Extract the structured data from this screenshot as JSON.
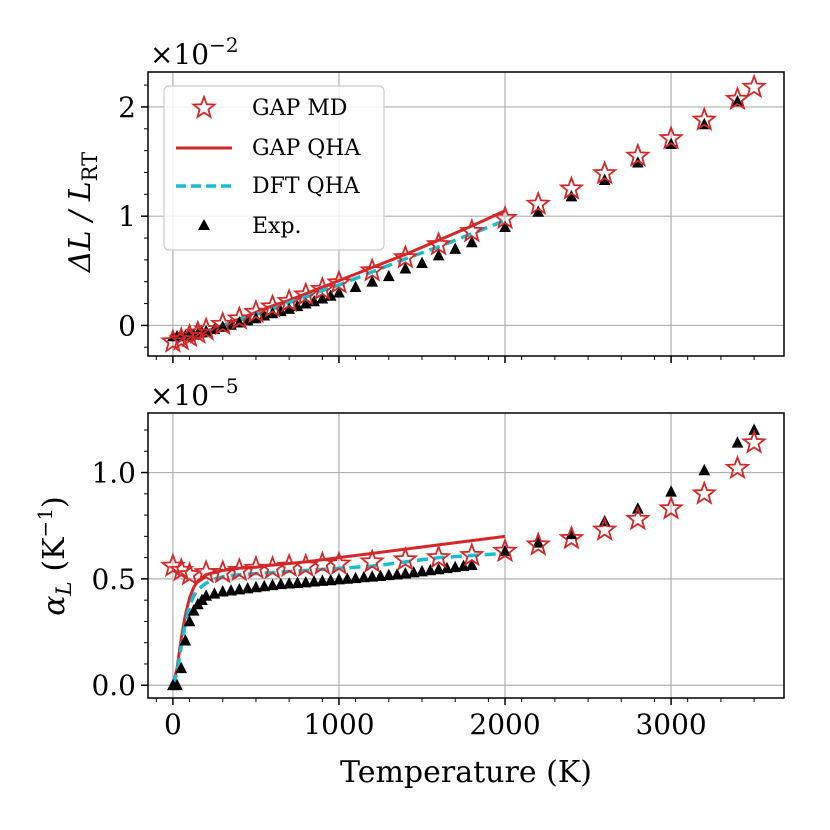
{
  "chart_data": [
    {
      "type": "scatter",
      "xlabel": "",
      "ylabel_main": "ΔL / L",
      "ylabel_sub": "RT",
      "scale_base": "×10",
      "scale_exp": "−2",
      "xlim": [
        -150,
        3680
      ],
      "ylim": [
        -0.28,
        2.32
      ],
      "xticks": [
        0,
        1000,
        2000,
        3000
      ],
      "yticks": [
        0,
        1,
        2
      ],
      "ytick_labels": [
        "0",
        "1",
        "2"
      ],
      "grid": true,
      "legend": {
        "position": "top-left",
        "entries": [
          "GAP MD",
          "GAP QHA",
          "DFT QHA",
          "Exp."
        ]
      },
      "series": [
        {
          "name": "GAP MD",
          "marker": "star",
          "color": "#d62728",
          "x": [
            0,
            50,
            100,
            150,
            200,
            300,
            400,
            500,
            600,
            700,
            800,
            900,
            1000,
            1200,
            1400,
            1600,
            1800,
            2000,
            2200,
            2400,
            2600,
            2800,
            3000,
            3200,
            3400,
            3500
          ],
          "y": [
            -0.15,
            -0.13,
            -0.1,
            -0.07,
            -0.04,
            0.01,
            0.06,
            0.12,
            0.17,
            0.22,
            0.28,
            0.33,
            0.39,
            0.5,
            0.62,
            0.74,
            0.86,
            0.98,
            1.11,
            1.25,
            1.39,
            1.55,
            1.71,
            1.88,
            2.07,
            2.18
          ]
        },
        {
          "name": "GAP QHA",
          "marker": "line",
          "color": "#d62728",
          "x": [
            0,
            50,
            100,
            150,
            200,
            300,
            400,
            500,
            600,
            700,
            800,
            900,
            1000,
            1200,
            1400,
            1600,
            1800,
            2000
          ],
          "y": [
            -0.12,
            -0.118,
            -0.105,
            -0.08,
            -0.05,
            0.0,
            0.06,
            0.12,
            0.18,
            0.23,
            0.29,
            0.35,
            0.41,
            0.53,
            0.65,
            0.78,
            0.91,
            1.05
          ]
        },
        {
          "name": "DFT QHA",
          "marker": "dashed",
          "color": "#17becf",
          "x": [
            0,
            50,
            100,
            150,
            200,
            300,
            400,
            500,
            600,
            700,
            800,
            900,
            1000,
            1200,
            1400,
            1600,
            1800,
            2000
          ],
          "y": [
            -0.12,
            -0.118,
            -0.107,
            -0.085,
            -0.055,
            -0.005,
            0.05,
            0.1,
            0.15,
            0.21,
            0.26,
            0.32,
            0.37,
            0.49,
            0.61,
            0.72,
            0.84,
            0.96
          ]
        },
        {
          "name": "Exp.",
          "marker": "triangle",
          "color": "#000000",
          "x": [
            0,
            25,
            50,
            75,
            100,
            125,
            150,
            175,
            200,
            250,
            300,
            350,
            400,
            450,
            500,
            550,
            600,
            650,
            700,
            750,
            800,
            850,
            900,
            950,
            1000,
            1100,
            1200,
            1300,
            1400,
            1500,
            1600,
            1700,
            1800,
            2000,
            2200,
            2400,
            2600,
            2800,
            3000,
            3200,
            3400
          ],
          "y": [
            -0.1,
            -0.1,
            -0.1,
            -0.095,
            -0.09,
            -0.085,
            -0.075,
            -0.065,
            -0.055,
            -0.035,
            -0.015,
            0.005,
            0.025,
            0.045,
            0.065,
            0.09,
            0.11,
            0.13,
            0.15,
            0.175,
            0.2,
            0.22,
            0.245,
            0.27,
            0.3,
            0.35,
            0.4,
            0.45,
            0.52,
            0.57,
            0.64,
            0.7,
            0.76,
            0.9,
            1.04,
            1.18,
            1.33,
            1.49,
            1.66,
            1.84,
            2.05
          ]
        }
      ]
    },
    {
      "type": "scatter",
      "xlabel": "Temperature (K)",
      "ylabel_main": "α",
      "ylabel_sub": "L",
      "ylabel_unit": "(K",
      "ylabel_unit_exp": "−1",
      "ylabel_unit_close": ")",
      "scale_base": "×10",
      "scale_exp": "−5",
      "xlim": [
        -150,
        3680
      ],
      "ylim": [
        -0.06,
        1.28
      ],
      "xticks": [
        0,
        1000,
        2000,
        3000
      ],
      "xtick_labels": [
        "0",
        "1000",
        "2000",
        "3000"
      ],
      "yticks": [
        0.0,
        0.5,
        1.0
      ],
      "ytick_labels": [
        "0.0",
        "0.5",
        "1.0"
      ],
      "grid": true,
      "series": [
        {
          "name": "GAP MD",
          "marker": "star",
          "color": "#d62728",
          "x": [
            0,
            50,
            100,
            200,
            300,
            400,
            500,
            600,
            700,
            800,
            900,
            1000,
            1200,
            1400,
            1600,
            1800,
            2000,
            2200,
            2400,
            2600,
            2800,
            3000,
            3200,
            3400,
            3500
          ],
          "y": [
            0.56,
            0.54,
            0.52,
            0.53,
            0.53,
            0.54,
            0.55,
            0.55,
            0.56,
            0.56,
            0.57,
            0.57,
            0.58,
            0.59,
            0.6,
            0.61,
            0.63,
            0.66,
            0.69,
            0.73,
            0.78,
            0.83,
            0.9,
            1.02,
            1.14
          ]
        },
        {
          "name": "GAP QHA",
          "marker": "line",
          "color": "#d62728",
          "x": [
            0,
            25,
            50,
            75,
            100,
            125,
            150,
            200,
            250,
            300,
            400,
            500,
            600,
            800,
            1000,
            1200,
            1400,
            1600,
            1800,
            2000
          ],
          "y": [
            0.0,
            0.08,
            0.22,
            0.33,
            0.41,
            0.46,
            0.49,
            0.52,
            0.53,
            0.54,
            0.55,
            0.555,
            0.565,
            0.58,
            0.6,
            0.62,
            0.64,
            0.66,
            0.68,
            0.7
          ]
        },
        {
          "name": "DFT QHA",
          "marker": "dashed",
          "color": "#17becf",
          "x": [
            0,
            25,
            50,
            75,
            100,
            125,
            150,
            200,
            250,
            300,
            400,
            500,
            600,
            800,
            1000,
            1200,
            1400,
            1600,
            1800,
            2000
          ],
          "y": [
            0.0,
            0.06,
            0.18,
            0.29,
            0.37,
            0.42,
            0.45,
            0.48,
            0.5,
            0.51,
            0.52,
            0.525,
            0.53,
            0.54,
            0.55,
            0.56,
            0.58,
            0.6,
            0.61,
            0.62
          ]
        },
        {
          "name": "Exp.",
          "marker": "triangle",
          "color": "#000000",
          "x": [
            0,
            25,
            50,
            75,
            100,
            125,
            150,
            175,
            200,
            250,
            300,
            350,
            400,
            450,
            500,
            550,
            600,
            650,
            700,
            750,
            800,
            850,
            900,
            950,
            1000,
            1050,
            1100,
            1150,
            1200,
            1250,
            1300,
            1350,
            1400,
            1450,
            1500,
            1550,
            1600,
            1650,
            1700,
            1750,
            1800,
            2000,
            2200,
            2400,
            2600,
            2800,
            3000,
            3200,
            3400,
            3500
          ],
          "y": [
            0.0,
            0.0,
            0.08,
            0.21,
            0.3,
            0.35,
            0.38,
            0.4,
            0.42,
            0.43,
            0.44,
            0.445,
            0.45,
            0.455,
            0.46,
            0.465,
            0.47,
            0.475,
            0.478,
            0.48,
            0.483,
            0.487,
            0.49,
            0.493,
            0.497,
            0.5,
            0.503,
            0.507,
            0.51,
            0.513,
            0.517,
            0.52,
            0.525,
            0.53,
            0.535,
            0.54,
            0.545,
            0.55,
            0.555,
            0.56,
            0.565,
            0.63,
            0.67,
            0.71,
            0.77,
            0.83,
            0.91,
            1.01,
            1.14,
            1.2
          ]
        }
      ]
    }
  ]
}
